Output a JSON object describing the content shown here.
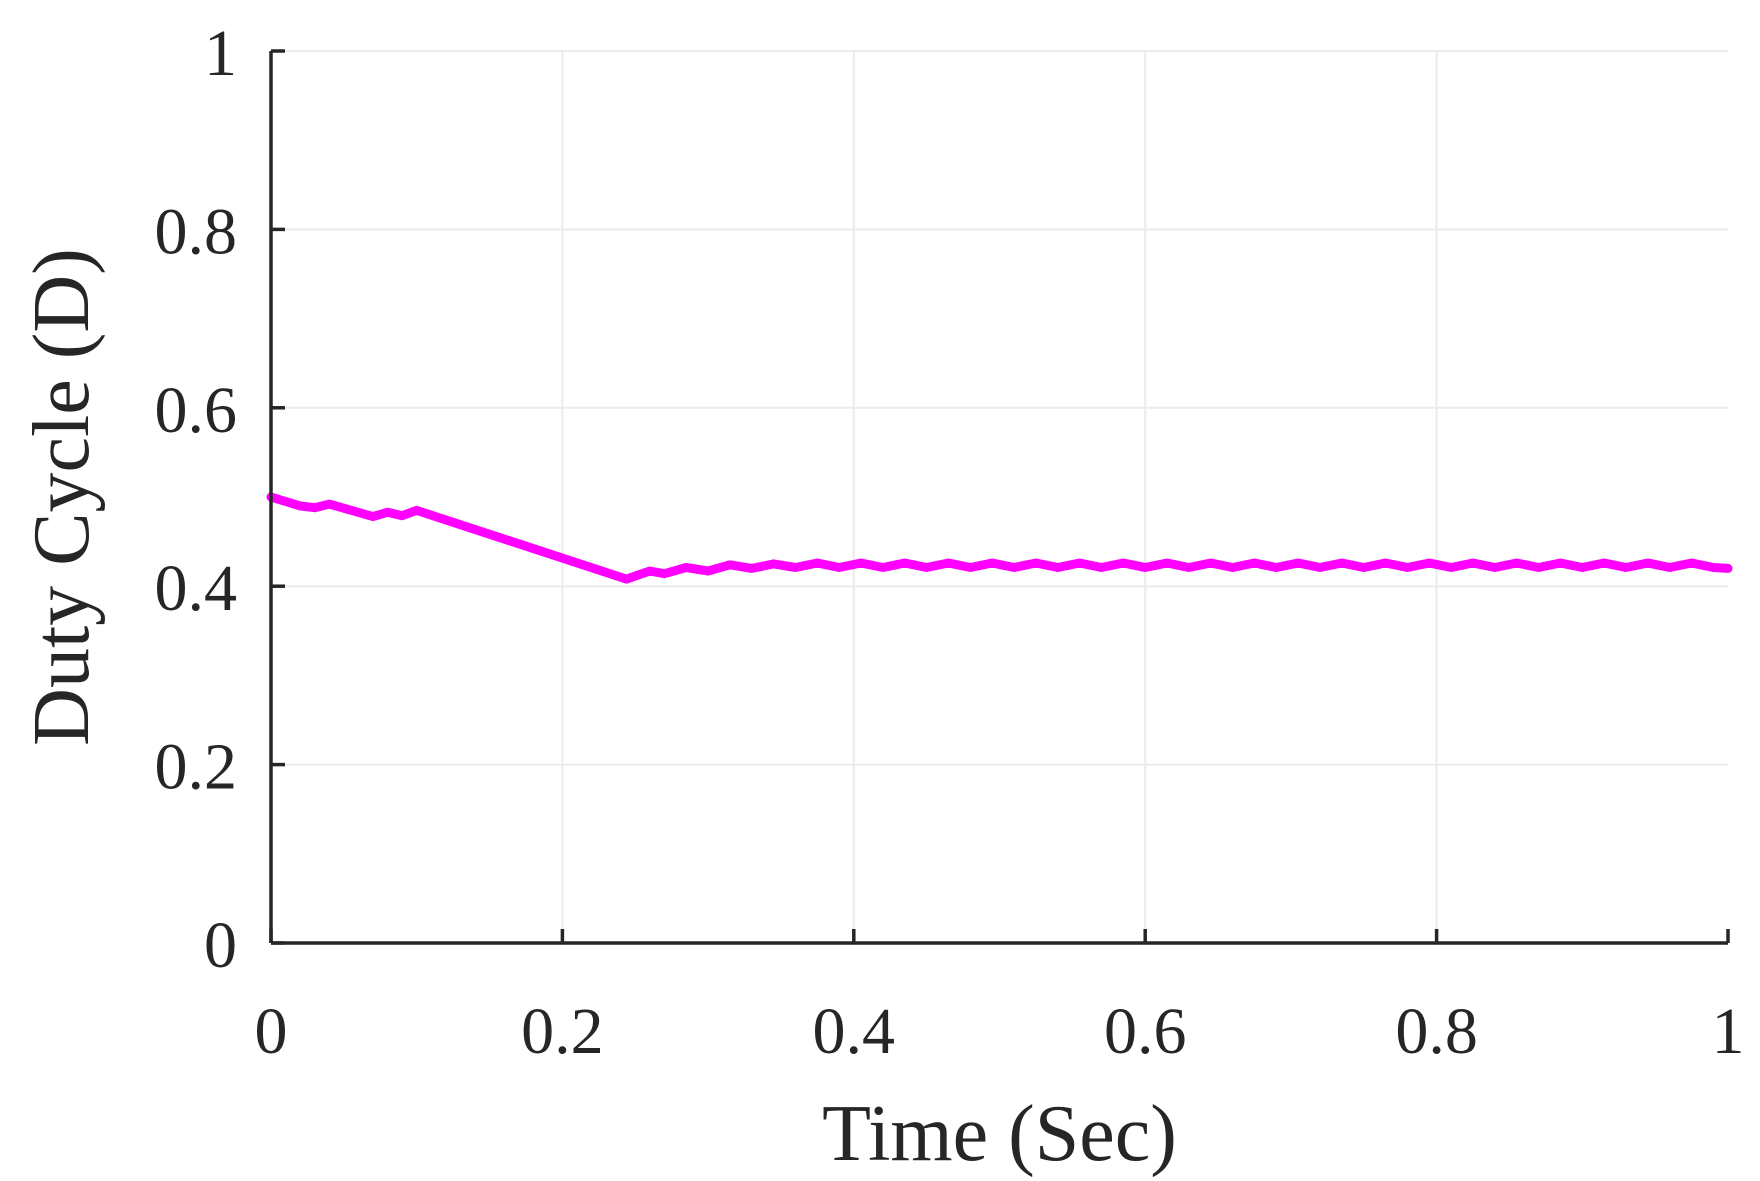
{
  "chart_data": {
    "type": "line",
    "title": "",
    "xlabel": "Time (Sec)",
    "ylabel": "Duty Cycle (D)",
    "xlim": [
      0,
      1
    ],
    "ylim": [
      0,
      1
    ],
    "xticks": [
      0,
      0.2,
      0.4,
      0.6,
      0.8,
      1
    ],
    "yticks": [
      0,
      0.2,
      0.4,
      0.6,
      0.8,
      1
    ],
    "xtick_labels": [
      "0",
      "0.2",
      "0.4",
      "0.6",
      "0.8",
      "1"
    ],
    "ytick_labels": [
      "0",
      "0.2",
      "0.4",
      "0.6",
      "0.8",
      "1"
    ],
    "grid": true,
    "legend": "none",
    "series": [
      {
        "color": "#ff00ff",
        "x": [
          0,
          0.02,
          0.03,
          0.04,
          0.07,
          0.08,
          0.09,
          0.1,
          0.244,
          0.26,
          0.27,
          0.285,
          0.3,
          0.315,
          0.33,
          0.345,
          0.36,
          0.375,
          0.39,
          0.405,
          0.42,
          0.435,
          0.45,
          0.465,
          0.48,
          0.495,
          0.51,
          0.525,
          0.54,
          0.555,
          0.57,
          0.585,
          0.6,
          0.615,
          0.63,
          0.645,
          0.66,
          0.675,
          0.69,
          0.705,
          0.72,
          0.735,
          0.75,
          0.765,
          0.78,
          0.795,
          0.81,
          0.825,
          0.84,
          0.855,
          0.87,
          0.885,
          0.9,
          0.915,
          0.93,
          0.945,
          0.96,
          0.975,
          0.99,
          1.0
        ],
        "y": [
          0.5,
          0.49,
          0.488,
          0.492,
          0.478,
          0.483,
          0.479,
          0.485,
          0.408,
          0.417,
          0.414,
          0.421,
          0.417,
          0.424,
          0.42,
          0.425,
          0.421,
          0.426,
          0.421,
          0.426,
          0.421,
          0.426,
          0.421,
          0.426,
          0.421,
          0.426,
          0.421,
          0.426,
          0.421,
          0.426,
          0.421,
          0.426,
          0.421,
          0.426,
          0.421,
          0.426,
          0.421,
          0.426,
          0.421,
          0.426,
          0.421,
          0.426,
          0.421,
          0.426,
          0.421,
          0.426,
          0.421,
          0.426,
          0.421,
          0.426,
          0.421,
          0.426,
          0.421,
          0.426,
          0.421,
          0.426,
          0.421,
          0.426,
          0.421,
          0.42
        ]
      }
    ]
  }
}
